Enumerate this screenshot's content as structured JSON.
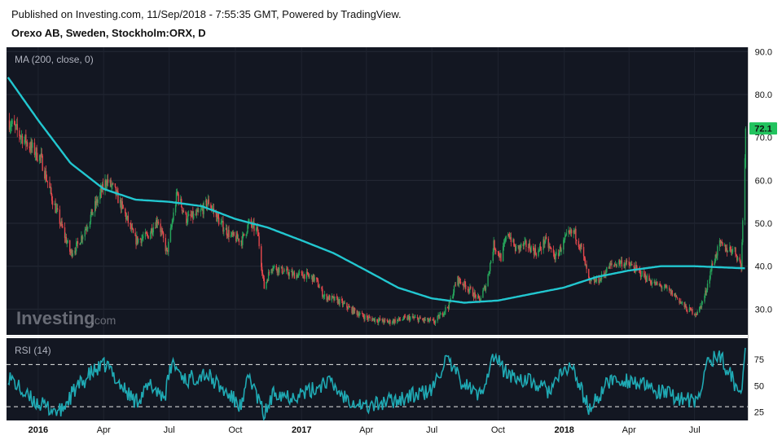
{
  "header": {
    "published": "Published on Investing.com, 11/Sep/2018 - 7:55:35 GMT, Powered by TradingView.",
    "symbol": "Orexo AB, Sweden, Stockholm:ORX, D"
  },
  "watermark": {
    "brand": "Investing",
    "suffix": ".com"
  },
  "colors": {
    "background": "#131722",
    "up": "#26a65b",
    "down": "#e5484d",
    "ma": "#22c7d0",
    "rsi": "#1fa9b3",
    "last_badge": "#22c35e"
  },
  "chart_data": [
    {
      "type": "line",
      "indicator_label": "MA (200, close, 0)",
      "ylim": [
        24,
        91
      ],
      "y_ticks": [
        "90.0",
        "80.0",
        "70.0",
        "60.0",
        "50.0",
        "40.0",
        "30.0"
      ],
      "y_tick_values": [
        90,
        80,
        70,
        60,
        50,
        40,
        30
      ],
      "last_price": "72.1",
      "last_value": 72.1,
      "x_ticks": [
        {
          "label": "2016",
          "bold": true
        },
        {
          "label": "Apr",
          "bold": false
        },
        {
          "label": "Jul",
          "bold": false
        },
        {
          "label": "Oct",
          "bold": false
        },
        {
          "label": "2017",
          "bold": true
        },
        {
          "label": "Apr",
          "bold": false
        },
        {
          "label": "Jul",
          "bold": false
        },
        {
          "label": "Oct",
          "bold": false
        },
        {
          "label": "2018",
          "bold": true
        },
        {
          "label": "Apr",
          "bold": false
        },
        {
          "label": "Jul",
          "bold": false
        }
      ],
      "price_anchors": [
        [
          "2015-11-20",
          74
        ],
        [
          "2015-12-10",
          70
        ],
        [
          "2016-01-05",
          65
        ],
        [
          "2016-01-20",
          56
        ],
        [
          "2016-02-05",
          48
        ],
        [
          "2016-02-15",
          43
        ],
        [
          "2016-02-25",
          45
        ],
        [
          "2016-03-10",
          50
        ],
        [
          "2016-03-25",
          56
        ],
        [
          "2016-04-05",
          60
        ],
        [
          "2016-04-15",
          58
        ],
        [
          "2016-05-01",
          52
        ],
        [
          "2016-05-15",
          46
        ],
        [
          "2016-06-01",
          47
        ],
        [
          "2016-06-15",
          51
        ],
        [
          "2016-06-28",
          43
        ],
        [
          "2016-07-05",
          50
        ],
        [
          "2016-07-12",
          57
        ],
        [
          "2016-07-25",
          51
        ],
        [
          "2016-08-10",
          52
        ],
        [
          "2016-08-25",
          55
        ],
        [
          "2016-09-10",
          50
        ],
        [
          "2016-09-25",
          47
        ],
        [
          "2016-10-10",
          46
        ],
        [
          "2016-10-20",
          50
        ],
        [
          "2016-11-01",
          48
        ],
        [
          "2016-11-10",
          35
        ],
        [
          "2016-11-20",
          40
        ],
        [
          "2016-12-05",
          39
        ],
        [
          "2016-12-20",
          38
        ],
        [
          "2017-01-05",
          38
        ],
        [
          "2017-01-20",
          37
        ],
        [
          "2017-02-01",
          33
        ],
        [
          "2017-02-20",
          32
        ],
        [
          "2017-03-10",
          30
        ],
        [
          "2017-04-01",
          28
        ],
        [
          "2017-05-01",
          27
        ],
        [
          "2017-06-01",
          28
        ],
        [
          "2017-07-05",
          27
        ],
        [
          "2017-07-15",
          29
        ],
        [
          "2017-07-25",
          31
        ],
        [
          "2017-08-05",
          37
        ],
        [
          "2017-08-20",
          35
        ],
        [
          "2017-09-05",
          32
        ],
        [
          "2017-09-15",
          36
        ],
        [
          "2017-09-25",
          45
        ],
        [
          "2017-10-05",
          42
        ],
        [
          "2017-10-15",
          48
        ],
        [
          "2017-10-25",
          44
        ],
        [
          "2017-11-10",
          45
        ],
        [
          "2017-11-25",
          43
        ],
        [
          "2017-12-05",
          46
        ],
        [
          "2017-12-20",
          42
        ],
        [
          "2018-01-05",
          47
        ],
        [
          "2018-01-15",
          48
        ],
        [
          "2018-01-25",
          44
        ],
        [
          "2018-02-05",
          36
        ],
        [
          "2018-02-20",
          37
        ],
        [
          "2018-03-05",
          40
        ],
        [
          "2018-03-20",
          41
        ],
        [
          "2018-04-05",
          40
        ],
        [
          "2018-04-20",
          38
        ],
        [
          "2018-05-05",
          36
        ],
        [
          "2018-05-20",
          35
        ],
        [
          "2018-06-05",
          33
        ],
        [
          "2018-06-20",
          30
        ],
        [
          "2018-07-05",
          29
        ],
        [
          "2018-07-15",
          33
        ],
        [
          "2018-07-25",
          40
        ],
        [
          "2018-08-05",
          45
        ],
        [
          "2018-08-15",
          44
        ],
        [
          "2018-08-25",
          44
        ],
        [
          "2018-09-04",
          40
        ],
        [
          "2018-09-10",
          72.1
        ]
      ],
      "ma_anchors": [
        [
          "2015-11-20",
          84
        ],
        [
          "2016-01-01",
          74
        ],
        [
          "2016-02-15",
          64
        ],
        [
          "2016-04-01",
          58
        ],
        [
          "2016-05-15",
          55.5
        ],
        [
          "2016-07-01",
          55
        ],
        [
          "2016-08-15",
          54
        ],
        [
          "2016-10-01",
          51
        ],
        [
          "2016-11-15",
          49
        ],
        [
          "2017-01-01",
          46
        ],
        [
          "2017-02-15",
          43
        ],
        [
          "2017-04-01",
          39
        ],
        [
          "2017-05-15",
          35
        ],
        [
          "2017-07-01",
          32.5
        ],
        [
          "2017-08-15",
          31.5
        ],
        [
          "2017-10-01",
          32
        ],
        [
          "2017-11-15",
          33.5
        ],
        [
          "2017-12-31",
          35
        ],
        [
          "2018-02-15",
          37.5
        ],
        [
          "2018-04-01",
          39
        ],
        [
          "2018-05-15",
          40
        ],
        [
          "2018-07-01",
          40
        ],
        [
          "2018-09-10",
          39.5
        ]
      ]
    },
    {
      "type": "line",
      "indicator_label": "RSI (14)",
      "ylim": [
        17,
        95
      ],
      "y_ticks": [
        "75",
        "50",
        "25"
      ],
      "y_tick_values": [
        75,
        50,
        25
      ],
      "bands": [
        30,
        70
      ],
      "rsi_anchors": [
        [
          "2015-11-20",
          60
        ],
        [
          "2015-12-15",
          40
        ],
        [
          "2016-01-10",
          30
        ],
        [
          "2016-02-01",
          25
        ],
        [
          "2016-02-20",
          45
        ],
        [
          "2016-03-15",
          62
        ],
        [
          "2016-04-05",
          70
        ],
        [
          "2016-04-25",
          50
        ],
        [
          "2016-05-15",
          35
        ],
        [
          "2016-06-05",
          50
        ],
        [
          "2016-06-25",
          40
        ],
        [
          "2016-07-05",
          72
        ],
        [
          "2016-07-25",
          55
        ],
        [
          "2016-08-20",
          62
        ],
        [
          "2016-09-15",
          45
        ],
        [
          "2016-10-10",
          30
        ],
        [
          "2016-10-20",
          60
        ],
        [
          "2016-11-10",
          22
        ],
        [
          "2016-11-25",
          45
        ],
        [
          "2016-12-15",
          40
        ],
        [
          "2017-01-15",
          45
        ],
        [
          "2017-02-05",
          55
        ],
        [
          "2017-03-01",
          40
        ],
        [
          "2017-04-01",
          30
        ],
        [
          "2017-05-01",
          35
        ],
        [
          "2017-06-01",
          40
        ],
        [
          "2017-07-01",
          45
        ],
        [
          "2017-07-20",
          75
        ],
        [
          "2017-08-10",
          55
        ],
        [
          "2017-09-05",
          40
        ],
        [
          "2017-09-25",
          78
        ],
        [
          "2017-10-15",
          60
        ],
        [
          "2017-11-10",
          55
        ],
        [
          "2017-12-10",
          45
        ],
        [
          "2018-01-10",
          70
        ],
        [
          "2018-02-05",
          27
        ],
        [
          "2018-03-05",
          55
        ],
        [
          "2018-04-05",
          55
        ],
        [
          "2018-05-05",
          45
        ],
        [
          "2018-06-05",
          40
        ],
        [
          "2018-07-05",
          33
        ],
        [
          "2018-07-20",
          75
        ],
        [
          "2018-08-05",
          78
        ],
        [
          "2018-08-20",
          60
        ],
        [
          "2018-09-04",
          40
        ],
        [
          "2018-09-10",
          90
        ]
      ]
    }
  ]
}
